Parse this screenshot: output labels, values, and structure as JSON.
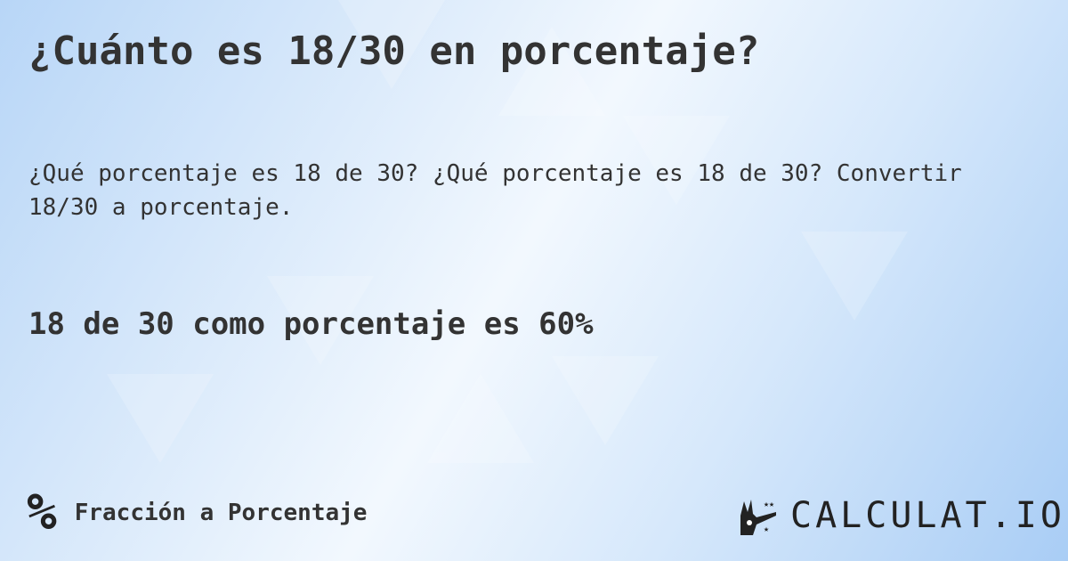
{
  "title": "¿Cuánto es 18/30 en porcentaje?",
  "description": "¿Qué porcentaje es 18 de 30? ¿Qué porcentaje es 18 de 30? Convertir 18/30 a porcentaje.",
  "result": "18 de 30 como porcentaje es 60%",
  "footer": {
    "icon": "percent-icon",
    "symbol": "%",
    "category": "Fracción a Porcentaje"
  },
  "logo": {
    "text": "CALCULAT.IO",
    "icon": "magic-hand-icon"
  }
}
